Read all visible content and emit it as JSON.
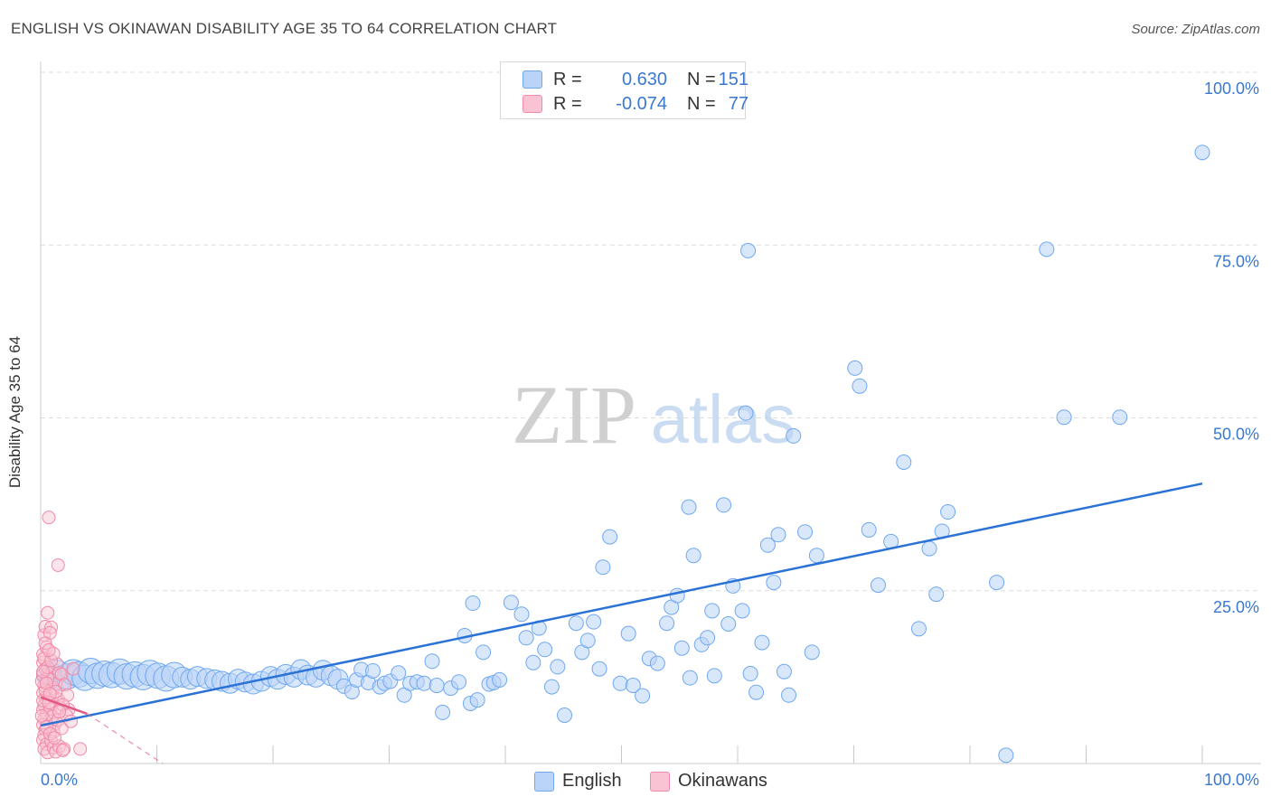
{
  "title": "ENGLISH VS OKINAWAN DISABILITY AGE 35 TO 64 CORRELATION CHART",
  "source": "Source: ZipAtlas.com",
  "watermark": {
    "zip": "ZIP",
    "atlas": "atlas"
  },
  "colors": {
    "english": "#6fa8f0",
    "english_fill": "#b9d4f7",
    "english_line": "#2b72d6",
    "okinawan": "#f08aa8",
    "okinawan_fill": "#f9c3d3",
    "okinawan_line": "#e05a84",
    "value_blue": "#3a78d0",
    "grid": "#dddddd"
  },
  "legend": {
    "rows": [
      {
        "r_label": "R =",
        "r_value": "0.630",
        "n_label": "N =",
        "n_value": "151"
      },
      {
        "r_label": "R =",
        "r_value": "-0.074",
        "n_label": "N =",
        "n_value": "77"
      }
    ]
  },
  "bottom_legend": {
    "english": "English",
    "okinawans": "Okinawans"
  },
  "chart_data": {
    "type": "scatter",
    "title": "ENGLISH VS OKINAWAN DISABILITY AGE 35 TO 64 CORRELATION CHART",
    "xlabel": "",
    "ylabel": "Disability Age 35 to 64",
    "xlim": [
      0,
      100
    ],
    "ylim": [
      0,
      100
    ],
    "x_tick_labels": [
      "0.0%",
      "100.0%"
    ],
    "y_tick_labels": [
      "25.0%",
      "50.0%",
      "75.0%",
      "100.0%"
    ],
    "y_ticks": [
      25,
      50,
      75,
      100
    ],
    "grid": true,
    "series": [
      {
        "name": "English",
        "r": 0.63,
        "n": 151,
        "trend": {
          "x": [
            0,
            100
          ],
          "y": [
            5.5,
            40.5
          ]
        },
        "points": [
          [
            0.5,
            12.8,
            2
          ],
          [
            0.8,
            12.2,
            2
          ],
          [
            1,
            13.1,
            2
          ],
          [
            1.2,
            12.5,
            2
          ],
          [
            1.5,
            13.5,
            2
          ],
          [
            1.8,
            12,
            2
          ],
          [
            2.3,
            12.6,
            3
          ],
          [
            2.8,
            13.2,
            3
          ],
          [
            3.3,
            12.9,
            3
          ],
          [
            3.8,
            12.4,
            3
          ],
          [
            4.3,
            13.4,
            3
          ],
          [
            4.9,
            12.7,
            3
          ],
          [
            5.5,
            13,
            3
          ],
          [
            6.1,
            12.8,
            3
          ],
          [
            6.8,
            13.3,
            3
          ],
          [
            7.4,
            12.6,
            3
          ],
          [
            8.1,
            12.9,
            3
          ],
          [
            8.8,
            12.5,
            3
          ],
          [
            9.4,
            13.1,
            3
          ],
          [
            10.1,
            12.7,
            3
          ],
          [
            10.8,
            12.3,
            3
          ],
          [
            11.5,
            12.8,
            3
          ],
          [
            12.2,
            12.5,
            2
          ],
          [
            12.9,
            12.2,
            2
          ],
          [
            13.5,
            12.6,
            2
          ],
          [
            14.3,
            12.3,
            2
          ],
          [
            15,
            12.1,
            2
          ],
          [
            15.6,
            11.9,
            2
          ],
          [
            16.3,
            11.6,
            2
          ],
          [
            17,
            12.2,
            2
          ],
          [
            17.6,
            11.8,
            2
          ],
          [
            18.3,
            11.5,
            2
          ],
          [
            19,
            11.9,
            2
          ],
          [
            19.8,
            12.6,
            2
          ],
          [
            20.4,
            12.2,
            2
          ],
          [
            21.1,
            12.9,
            2
          ],
          [
            21.8,
            12.5,
            2
          ],
          [
            22.4,
            13.6,
            2
          ],
          [
            23,
            12.8,
            2
          ],
          [
            23.7,
            12.5,
            2
          ],
          [
            24.3,
            13.5,
            2
          ],
          [
            25,
            12.7,
            2
          ],
          [
            25.6,
            12.2,
            2
          ],
          [
            26.1,
            11.2,
            1
          ],
          [
            26.8,
            10.4,
            1
          ],
          [
            27.2,
            12.1,
            1
          ],
          [
            27.6,
            13.6,
            1
          ],
          [
            28.2,
            11.7,
            1
          ],
          [
            28.6,
            13.4,
            1
          ],
          [
            29.2,
            11.1,
            1
          ],
          [
            29.6,
            11.6,
            1
          ],
          [
            30.1,
            11.9,
            1
          ],
          [
            30.8,
            13.1,
            1
          ],
          [
            31.3,
            9.9,
            1
          ],
          [
            31.8,
            11.6,
            1
          ],
          [
            32.4,
            11.8,
            1
          ],
          [
            33,
            11.6,
            1
          ],
          [
            33.7,
            14.8,
            1
          ],
          [
            34.1,
            11.3,
            1
          ],
          [
            34.6,
            7.4,
            1
          ],
          [
            35.3,
            10.9,
            1
          ],
          [
            36,
            11.8,
            1
          ],
          [
            37,
            8.7,
            1
          ],
          [
            37.6,
            9.2,
            1
          ],
          [
            38.1,
            16.1,
            1
          ],
          [
            38.6,
            11.5,
            1
          ],
          [
            39,
            11.7,
            1
          ],
          [
            39.5,
            12.1,
            1
          ],
          [
            36.5,
            18.5,
            1
          ],
          [
            37.2,
            23.2,
            1
          ],
          [
            40.5,
            23.3,
            1
          ],
          [
            41.4,
            21.6,
            1
          ],
          [
            41.8,
            18.2,
            1
          ],
          [
            42.4,
            14.6,
            1
          ],
          [
            42.9,
            19.6,
            1
          ],
          [
            43.4,
            16.5,
            1
          ],
          [
            44.5,
            14,
            1
          ],
          [
            45.1,
            7,
            1
          ],
          [
            44,
            11.1,
            1
          ],
          [
            46.1,
            20.3,
            1
          ],
          [
            46.6,
            16.1,
            1
          ],
          [
            47.1,
            17.8,
            1
          ],
          [
            47.6,
            20.5,
            1
          ],
          [
            48.1,
            13.7,
            1
          ],
          [
            48.4,
            28.4,
            1
          ],
          [
            49,
            32.8,
            1
          ],
          [
            49.9,
            11.6,
            1
          ],
          [
            50.6,
            18.8,
            1
          ],
          [
            51,
            11.3,
            1
          ],
          [
            51.8,
            9.8,
            1
          ],
          [
            52.4,
            15.2,
            1
          ],
          [
            53.1,
            14.5,
            1
          ],
          [
            53.9,
            20.3,
            1
          ],
          [
            54.3,
            22.6,
            1
          ],
          [
            54.8,
            24.3,
            1
          ],
          [
            55.2,
            16.7,
            1
          ],
          [
            55.9,
            12.4,
            1
          ],
          [
            55.8,
            37.1,
            1
          ],
          [
            56.2,
            30.1,
            1
          ],
          [
            56.9,
            17.2,
            1
          ],
          [
            57.4,
            18.2,
            1
          ],
          [
            58,
            12.7,
            1
          ],
          [
            57.8,
            22.1,
            1
          ],
          [
            58.8,
            37.4,
            1
          ],
          [
            59.2,
            20.2,
            1
          ],
          [
            59.6,
            25.7,
            1
          ],
          [
            60.4,
            22.1,
            1
          ],
          [
            61.1,
            13,
            1
          ],
          [
            61.6,
            10.3,
            1
          ],
          [
            62.1,
            17.5,
            1
          ],
          [
            62.6,
            31.6,
            1
          ],
          [
            63.1,
            26.2,
            1
          ],
          [
            63.5,
            33.1,
            1
          ],
          [
            64,
            13.3,
            1
          ],
          [
            64.4,
            9.9,
            1
          ],
          [
            65.8,
            33.5,
            1
          ],
          [
            66.4,
            16.1,
            1
          ],
          [
            66.8,
            30.1,
            1
          ],
          [
            60.7,
            50.7,
            1
          ],
          [
            64.8,
            47.4,
            1
          ],
          [
            60.9,
            74.2,
            1
          ],
          [
            70.1,
            57.2,
            1
          ],
          [
            70.5,
            54.6,
            1
          ],
          [
            71.3,
            33.8,
            1
          ],
          [
            72.1,
            25.8,
            1
          ],
          [
            73.2,
            32.1,
            1
          ],
          [
            74.3,
            43.6,
            1
          ],
          [
            75.6,
            19.5,
            1
          ],
          [
            76.5,
            31.1,
            1
          ],
          [
            77.1,
            24.5,
            1
          ],
          [
            77.6,
            33.6,
            1
          ],
          [
            78.1,
            36.4,
            1
          ],
          [
            82.3,
            26.2,
            1
          ],
          [
            83.1,
            1.2,
            1
          ],
          [
            86.6,
            74.4,
            1
          ],
          [
            88.1,
            50.1,
            1
          ],
          [
            92.9,
            50.1,
            1
          ],
          [
            100,
            88.4,
            1
          ]
        ]
      },
      {
        "name": "Okinawans",
        "r": -0.074,
        "n": 77,
        "trend": {
          "x": [
            0,
            4
          ],
          "y": [
            9.6,
            7.2
          ]
        },
        "trend_extension": {
          "x": [
            4,
            10.5
          ],
          "y": [
            7.2,
            0
          ]
        },
        "points": [
          [
            0.2,
            12.8
          ],
          [
            0.3,
            11.3
          ],
          [
            0.2,
            10.2
          ],
          [
            0.4,
            9.5
          ],
          [
            0.3,
            8.4
          ],
          [
            0.2,
            7.8
          ],
          [
            0.5,
            7.1
          ],
          [
            0.3,
            6.4
          ],
          [
            0.2,
            5.6
          ],
          [
            0.4,
            4.9
          ],
          [
            0.3,
            4.1
          ],
          [
            0.2,
            3.4
          ],
          [
            0.5,
            2.8
          ],
          [
            0.3,
            2.1
          ],
          [
            0.6,
            1.6
          ],
          [
            0.2,
            14.6
          ],
          [
            0.4,
            13.7
          ],
          [
            0.2,
            15.8
          ],
          [
            0.5,
            16.8
          ],
          [
            0.3,
            18.6
          ],
          [
            0.4,
            19.8
          ],
          [
            0.6,
            21.8
          ],
          [
            0.9,
            19.7
          ],
          [
            0.8,
            18.9
          ],
          [
            1,
            13.2
          ],
          [
            0.9,
            12.1
          ],
          [
            1.1,
            10.9
          ],
          [
            1,
            9.8
          ],
          [
            0.9,
            8.7
          ],
          [
            0.8,
            7.9
          ],
          [
            1,
            6.8
          ],
          [
            1.2,
            5.7
          ],
          [
            1.1,
            4.6
          ],
          [
            0.9,
            3.2
          ],
          [
            1.1,
            2.3
          ],
          [
            1.3,
            1.7
          ],
          [
            1.4,
            14.4
          ],
          [
            1.6,
            13.1
          ],
          [
            1.3,
            11.5
          ],
          [
            1.5,
            9.3
          ],
          [
            1.7,
            8.1
          ],
          [
            1.5,
            6.3
          ],
          [
            1.8,
            5.1
          ],
          [
            1.6,
            2.5
          ],
          [
            2,
            2.1
          ],
          [
            1.9,
            1.9
          ],
          [
            0.7,
            35.6
          ],
          [
            1.5,
            28.7
          ],
          [
            2.4,
            7.8
          ],
          [
            3.4,
            2.1
          ],
          [
            0.2,
            9.1
          ],
          [
            0.4,
            10.6
          ],
          [
            0.6,
            12.3
          ],
          [
            0.7,
            8.8
          ],
          [
            0.1,
            6.9
          ],
          [
            0.5,
            5.3
          ],
          [
            0.8,
            4.3
          ],
          [
            1.2,
            3.7
          ],
          [
            0.3,
            15.2
          ],
          [
            1.8,
            12.9
          ],
          [
            2.1,
            11.4
          ],
          [
            2.3,
            9.9
          ],
          [
            1.9,
            8.5
          ],
          [
            2.2,
            7
          ],
          [
            2.6,
            6.1
          ],
          [
            0.6,
            13.9
          ],
          [
            0.9,
            14.9
          ],
          [
            1.1,
            15.9
          ],
          [
            0.4,
            17.4
          ],
          [
            0.7,
            16.4
          ],
          [
            1.3,
            10.4
          ],
          [
            1.6,
            7.5
          ],
          [
            2.8,
            13.7
          ],
          [
            0.1,
            11.9
          ],
          [
            0.2,
            13.3
          ],
          [
            0.5,
            11.6
          ],
          [
            0.8,
            10.1
          ]
        ]
      }
    ]
  }
}
